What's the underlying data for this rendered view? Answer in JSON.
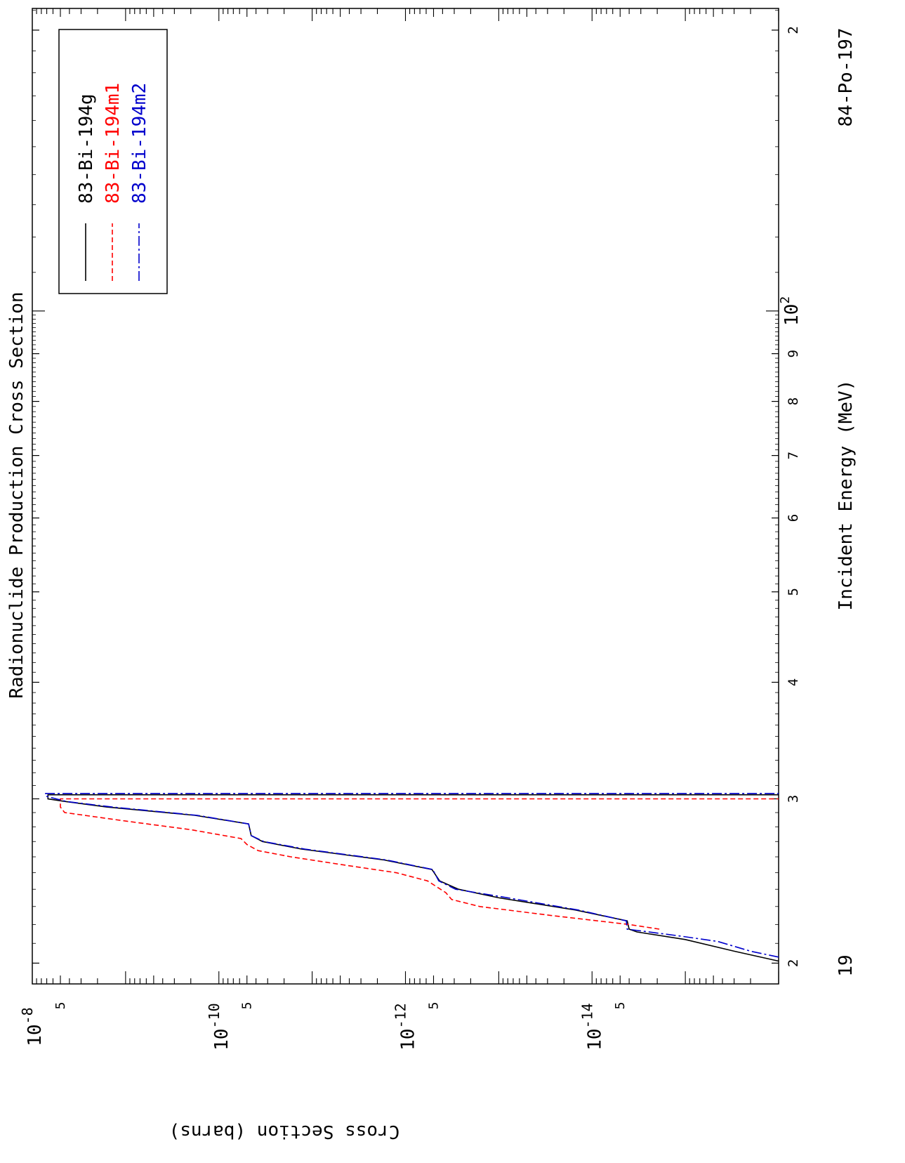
{
  "chart_data": {
    "type": "line",
    "title": "Radionuclide Production Cross Section",
    "xlabel": "Incident Energy (MeV)",
    "ylabel": "Cross Section (barns)",
    "corner_left_label": "19",
    "corner_right_label": "84-Po-197",
    "x_scale": "log",
    "y_scale": "log",
    "xlim": [
      19,
      211
    ],
    "ylim": [
      1e-16,
      1e-08
    ],
    "x_ticks": [
      {
        "value": 20,
        "label": "2"
      },
      {
        "value": 30,
        "label": "3"
      },
      {
        "value": 40,
        "label": "4"
      },
      {
        "value": 50,
        "label": "5"
      },
      {
        "value": 60,
        "label": "6"
      },
      {
        "value": 70,
        "label": "7"
      },
      {
        "value": 80,
        "label": "8"
      },
      {
        "value": 90,
        "label": "9"
      },
      {
        "value": 100,
        "label": "10",
        "sup": "2"
      },
      {
        "value": 200,
        "label": "2"
      }
    ],
    "y_major_ticks": [
      {
        "value": 1e-08,
        "base": "10",
        "exp": "-8"
      },
      {
        "value": 1e-10,
        "base": "10",
        "exp": "-10"
      },
      {
        "value": 1e-12,
        "base": "10",
        "exp": "-12"
      },
      {
        "value": 1e-14,
        "base": "10",
        "exp": "-14"
      }
    ],
    "y_minor_labels": [
      {
        "value": 5e-09,
        "label": "5"
      },
      {
        "value": 5e-11,
        "label": "5"
      },
      {
        "value": 5e-13,
        "label": "5"
      },
      {
        "value": 5e-15,
        "label": "5"
      }
    ],
    "legend_position": "top-right",
    "series": [
      {
        "name": "83-Bi-194g",
        "color": "#000000",
        "dash": "solid",
        "points": [
          [
            20.1,
            1e-16
          ],
          [
            20.6,
            3e-16
          ],
          [
            21.2,
            1e-15
          ],
          [
            21.6,
            3.3e-15
          ],
          [
            21.75,
            4e-15
          ],
          [
            22.2,
            4.2e-15
          ],
          [
            22.8,
            1.5e-14
          ],
          [
            23.5,
            1e-13
          ],
          [
            24.0,
            2.7e-13
          ],
          [
            24.5,
            4.3e-13
          ],
          [
            25.2,
            5.2e-13
          ],
          [
            25.8,
            1.7e-12
          ],
          [
            26.5,
            1.3e-11
          ],
          [
            27.0,
            3.4e-11
          ],
          [
            27.4,
            4.5e-11
          ],
          [
            28.2,
            4.8e-11
          ],
          [
            28.8,
            1.8e-10
          ],
          [
            29.4,
            1.6e-09
          ],
          [
            29.8,
            4.4e-09
          ],
          [
            30.0,
            6.8e-09
          ],
          [
            30.3,
            6.8e-09
          ]
        ]
      },
      {
        "name": "83-Bi-194m1",
        "color": "#ff0000",
        "dash": "dashed",
        "points": [
          [
            21.75,
            1.9e-15
          ],
          [
            22.0,
            4e-15
          ],
          [
            22.5,
            2.8e-14
          ],
          [
            23.0,
            1.6e-13
          ],
          [
            23.4,
            3.2e-13
          ],
          [
            23.8,
            3.7e-13
          ],
          [
            24.5,
            5.8e-13
          ],
          [
            25.0,
            1.25e-12
          ],
          [
            25.5,
            4.8e-12
          ],
          [
            26.0,
            1.7e-11
          ],
          [
            26.4,
            3.8e-11
          ],
          [
            26.8,
            5e-11
          ],
          [
            27.2,
            5.8e-11
          ],
          [
            27.8,
            2e-10
          ],
          [
            28.4,
            1e-09
          ],
          [
            29.0,
            4.5e-09
          ],
          [
            29.4,
            5e-09
          ],
          [
            29.8,
            5e-09
          ],
          [
            30.0,
            5e-09
          ]
        ]
      },
      {
        "name": "83-Bi-194m2",
        "color": "#0000cc",
        "dash": "dashdot",
        "points": [
          [
            20.3,
            1e-16
          ],
          [
            20.6,
            2e-16
          ],
          [
            21.1,
            4.5e-16
          ],
          [
            21.4,
            1.2e-15
          ],
          [
            21.75,
            4.2e-15
          ],
          [
            22.2,
            4.3e-15
          ],
          [
            22.8,
            1.4e-14
          ],
          [
            23.5,
            8e-14
          ],
          [
            24.0,
            2.9e-13
          ],
          [
            24.5,
            4.4e-13
          ],
          [
            25.2,
            5.1e-13
          ],
          [
            25.8,
            1.6e-12
          ],
          [
            26.5,
            1.2e-11
          ],
          [
            27.0,
            3.3e-11
          ],
          [
            27.4,
            4.5e-11
          ],
          [
            28.2,
            4.8e-11
          ],
          [
            28.8,
            1.7e-10
          ],
          [
            29.4,
            1.4e-09
          ],
          [
            29.8,
            4.3e-09
          ],
          [
            30.2,
            7.2e-09
          ],
          [
            30.4,
            7.2e-09
          ]
        ]
      }
    ]
  }
}
